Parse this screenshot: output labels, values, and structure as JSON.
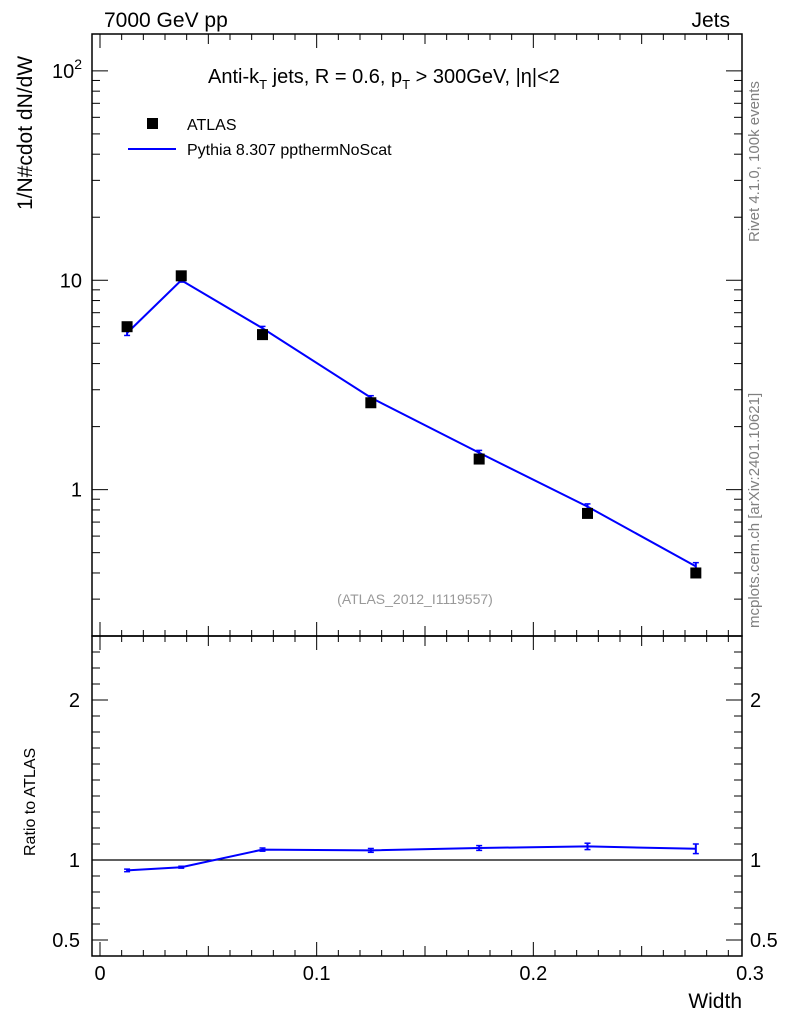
{
  "header": {
    "left": "7000 GeV pp",
    "right": "Jets"
  },
  "side_labels": {
    "rivet": "Rivet 4.1.0,  100k events",
    "mcplots": "mcplots.cern.ch [arXiv:2401.10621]"
  },
  "analysis_id": "(ATLAS_2012_I1119557)",
  "plot_title": {
    "part1": "Anti-k",
    "sub1": "T",
    "part2": " jets, R = 0.6, p",
    "sub2": "T",
    "part3": " > 300GeV, |η|<2"
  },
  "legend": {
    "data_label": "ATLAS",
    "mc_label": "Pythia 8.307 ppthermNoScat"
  },
  "colors": {
    "data": "#000000",
    "mc": "#0000ff",
    "frame": "#000000"
  },
  "chart_data": {
    "type": "scatter",
    "xlabel": "Width",
    "ylabel_main": "1/N#cdot dN/dW",
    "ylabel_ratio": "Ratio to ATLAS",
    "xlim": [
      0,
      0.3
    ],
    "ylim_main": [
      0.2,
      150
    ],
    "ylim_ratio": [
      0.4,
      2.4
    ],
    "yscale_main": "log",
    "x_ticks": [
      "0",
      "0.1",
      "0.2",
      "0.3"
    ],
    "y_ticks_main": [
      {
        "value": 1,
        "label": "1"
      },
      {
        "value": 10,
        "label": "10"
      },
      {
        "value": 100,
        "label": "10",
        "sup": "2"
      }
    ],
    "y_ticks_ratio": [
      "0.5",
      "1",
      "2"
    ],
    "legend_position": "top-left",
    "series": [
      {
        "name": "ATLAS",
        "style": "square-markers",
        "x": [
          0.0125,
          0.0375,
          0.075,
          0.125,
          0.175,
          0.225,
          0.275
        ],
        "y": [
          6.0,
          10.5,
          5.5,
          2.6,
          1.4,
          0.77,
          0.4
        ]
      },
      {
        "name": "Pythia 8.307 ppthermNoScat",
        "style": "line",
        "x": [
          0.0125,
          0.0375,
          0.075,
          0.125,
          0.175,
          0.225,
          0.275
        ],
        "y": [
          5.6,
          10.0,
          5.9,
          2.75,
          1.5,
          0.83,
          0.43
        ],
        "err": [
          0.15,
          0.2,
          0.12,
          0.06,
          0.04,
          0.025,
          0.018
        ]
      }
    ],
    "ratio": {
      "x": [
        0.0125,
        0.0375,
        0.075,
        0.125,
        0.175,
        0.225,
        0.275
      ],
      "y": [
        0.935,
        0.955,
        1.065,
        1.06,
        1.075,
        1.085,
        1.07
      ],
      "err": [
        0.008,
        0.006,
        0.01,
        0.012,
        0.015,
        0.02,
        0.03
      ]
    }
  }
}
